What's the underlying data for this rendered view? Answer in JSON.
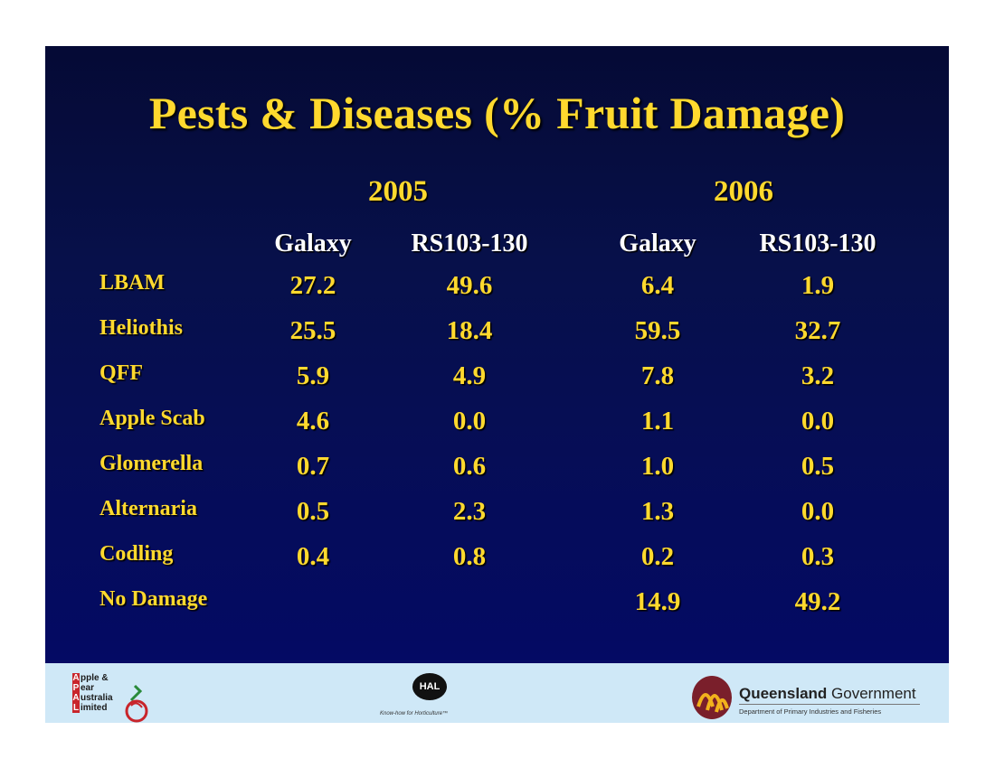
{
  "title": "Pests & Diseases (% Fruit Damage)",
  "years": [
    "2005",
    "2006"
  ],
  "column_headers": [
    "Galaxy",
    "RS103-130",
    "Galaxy",
    "RS103-130"
  ],
  "rows": [
    {
      "label": "LBAM",
      "values": [
        "27.2",
        "49.6",
        "6.4",
        "1.9"
      ]
    },
    {
      "label": "Heliothis",
      "values": [
        "25.5",
        "18.4",
        "59.5",
        "32.7"
      ]
    },
    {
      "label": "QFF",
      "values": [
        "5.9",
        "4.9",
        "7.8",
        "3.2"
      ]
    },
    {
      "label": "Apple Scab",
      "values": [
        "4.6",
        "0.0",
        "1.1",
        "0.0"
      ]
    },
    {
      "label": "Glomerella",
      "values": [
        "0.7",
        "0.6",
        "1.0",
        "0.5"
      ]
    },
    {
      "label": "Alternaria",
      "values": [
        "0.5",
        "2.3",
        "1.3",
        "0.0"
      ]
    },
    {
      "label": "Codling",
      "values": [
        "0.4",
        "0.8",
        "0.2",
        "0.3"
      ]
    },
    {
      "label": "No Damage",
      "values": [
        "",
        "",
        "14.9",
        "49.2"
      ]
    }
  ],
  "footer": {
    "apal": {
      "lines": [
        {
          "cap": "A",
          "rest": "pple &"
        },
        {
          "cap": "P",
          "rest": "ear"
        },
        {
          "cap": "A",
          "rest": "ustralia"
        },
        {
          "cap": "L",
          "rest": "imited"
        }
      ]
    },
    "hal": {
      "mark": "HAL",
      "tagline": "Know-how for Horticulture™"
    },
    "qld": {
      "name_bold": "Queensland",
      "name_rest": "Government",
      "department": "Department of Primary Industries and Fisheries"
    }
  },
  "colors": {
    "title": "#ffd92e",
    "header_text": "#ffffff",
    "background_top": "#050a35",
    "background_bottom": "#040a64",
    "footer": "#cfe8f7"
  }
}
